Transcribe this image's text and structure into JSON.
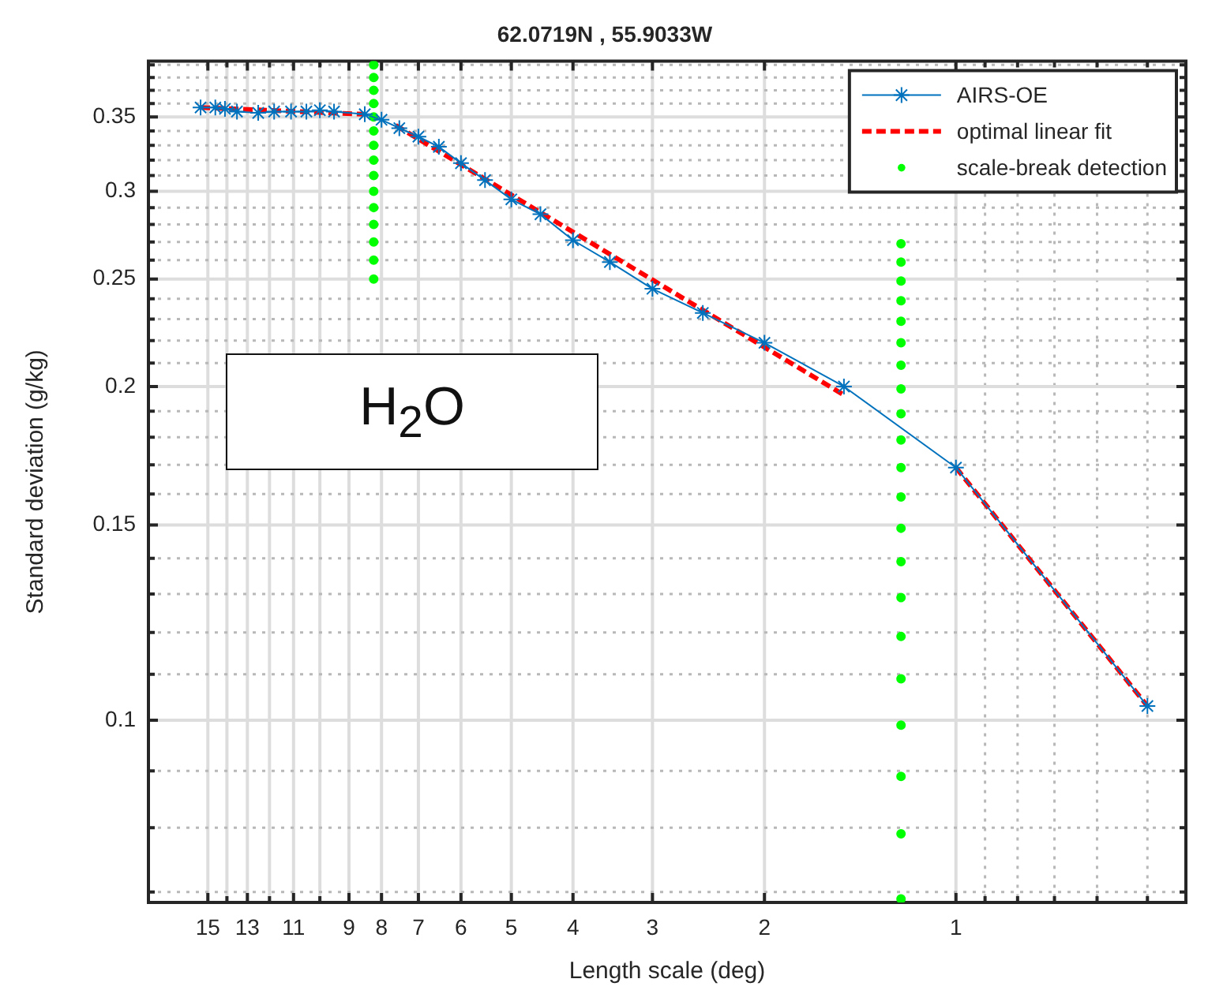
{
  "chart_data": {
    "type": "line",
    "title": "62.0719N , 55.9033W",
    "xlabel": "Length scale (deg)",
    "ylabel": "Standard deviation (g/kg)",
    "log": "xy",
    "grid": true,
    "legend": "top right",
    "xlim": [
      18.6,
      0.435
    ],
    "xticks": [
      15,
      {
        "value": 14,
        "label": null
      },
      13,
      {
        "value": 12,
        "label": null
      },
      11,
      {
        "value": 10,
        "label": null
      },
      9,
      8,
      7,
      6,
      5,
      4,
      3,
      2,
      1,
      {
        "value": 0.9,
        "label": null
      },
      {
        "value": 0.8,
        "label": null
      },
      {
        "value": 0.7,
        "label": null
      },
      {
        "value": 0.6,
        "label": null
      },
      {
        "value": 0.5,
        "label": null
      }
    ],
    "ylim": [
      0.0685,
      0.393
    ],
    "yticks": [
      {
        "value": 0.07,
        "label": null
      },
      {
        "value": 0.08,
        "label": null
      },
      {
        "value": 0.09,
        "label": null
      },
      0.1,
      {
        "value": 0.11,
        "label": null
      },
      {
        "value": 0.12,
        "label": null
      },
      {
        "value": 0.13,
        "label": null
      },
      {
        "value": 0.14,
        "label": null
      },
      0.15,
      {
        "value": 0.16,
        "label": null
      },
      {
        "value": 0.17,
        "label": null
      },
      {
        "value": 0.18,
        "label": null
      },
      {
        "value": 0.19,
        "label": null
      },
      0.2,
      {
        "value": 0.21,
        "label": null
      },
      {
        "value": 0.22,
        "label": null
      },
      {
        "value": 0.23,
        "label": null
      },
      {
        "value": 0.24,
        "label": null
      },
      0.25,
      {
        "value": 0.26,
        "label": null
      },
      {
        "value": 0.27,
        "label": null
      },
      {
        "value": 0.28,
        "label": null
      },
      {
        "value": 0.29,
        "label": null
      },
      0.3,
      {
        "value": 0.31,
        "label": null
      },
      {
        "value": 0.32,
        "label": null
      },
      {
        "value": 0.33,
        "label": null
      },
      {
        "value": 0.34,
        "label": null
      },
      0.35,
      {
        "value": 0.36,
        "label": null
      },
      {
        "value": 0.37,
        "label": null
      },
      {
        "value": 0.38,
        "label": null
      },
      {
        "value": 0.39,
        "label": null
      }
    ],
    "annotations": [
      "H$_{2}$O"
    ],
    "series": [
      {
        "name": "AIRS-OE",
        "color": "#0072bd",
        "marker": "cross",
        "line_style": "solid",
        "x": [
          15.4,
          14.6,
          14.1,
          13.5,
          12.5,
          11.8,
          11.1,
          10.5,
          10.0,
          9.5,
          8.5,
          8.0,
          7.5,
          7.0,
          6.5,
          6.0,
          5.5,
          5.0,
          4.5,
          4.0,
          3.5,
          3.0,
          2.5,
          2.0,
          1.5,
          1.0,
          0.5
        ],
        "values": [
          0.357,
          0.357,
          0.356,
          0.354,
          0.353,
          0.354,
          0.354,
          0.354,
          0.355,
          0.354,
          0.352,
          0.348,
          0.342,
          0.336,
          0.329,
          0.318,
          0.307,
          0.295,
          0.286,
          0.271,
          0.259,
          0.245,
          0.233,
          0.219,
          0.2,
          0.169,
          0.103
        ]
      },
      {
        "name": "optimal linear fit",
        "color": "#ff0000",
        "marker": "none",
        "line_style": "dashed",
        "x": [
          15.4,
          8.5,
          8.0,
          7.6,
          1.5,
          1.2,
          1.0,
          0.5
        ],
        "values": [
          0.357,
          0.352,
          null,
          0.344,
          0.1965,
          null,
          0.169,
          0.103
        ]
      },
      {
        "name": "scale-break detection",
        "type": "scatter",
        "color": "#00ff00",
        "marker": "circle",
        "x": [
          8.23,
          8.23,
          8.23,
          8.23,
          8.23,
          8.23,
          8.23,
          8.23,
          8.23,
          8.23,
          8.23,
          8.23,
          8.23,
          8.23,
          8.23,
          1.22,
          1.22,
          1.22,
          1.22,
          1.22,
          1.22,
          1.22,
          1.22,
          1.22,
          1.22,
          1.22,
          1.22,
          1.22,
          1.22,
          1.22,
          1.22,
          1.22,
          1.22,
          1.22,
          1.22,
          1.22
        ],
        "values": [
          0.25,
          0.26,
          0.27,
          0.28,
          0.29,
          0.3,
          0.31,
          0.32,
          0.33,
          0.34,
          0.35,
          0.36,
          0.37,
          0.38,
          0.39,
          0.069,
          0.079,
          0.089,
          0.099,
          0.109,
          0.119,
          0.129,
          0.139,
          0.149,
          0.159,
          0.169,
          0.179,
          0.189,
          0.199,
          0.209,
          0.219,
          0.229,
          0.239,
          0.249,
          0.259,
          0.269
        ]
      }
    ]
  }
}
